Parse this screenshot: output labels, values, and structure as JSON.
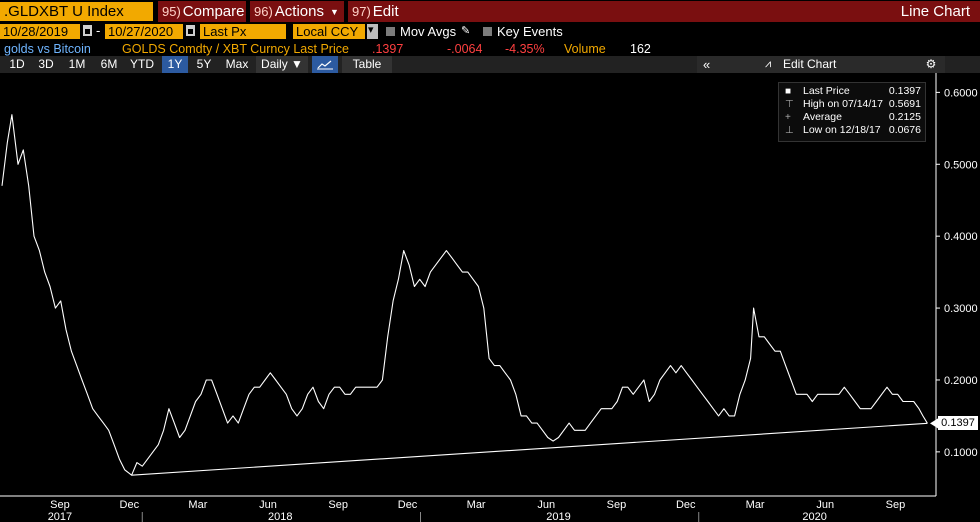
{
  "toolbar": {
    "ticker": ".GLDXBT U Index",
    "compare": {
      "num": "95)",
      "label": "Compare"
    },
    "actions": {
      "num": "96)",
      "label": "Actions"
    },
    "edit": {
      "num": "97)",
      "label": "Edit"
    },
    "chart_type": "Line Chart"
  },
  "controls": {
    "start_date": "10/28/2019",
    "end_date": "10/27/2020",
    "price_field": "Last Px",
    "currency": "Local CCY",
    "mov_avgs": "Mov Avgs",
    "key_events": "Key Events"
  },
  "info": {
    "name": "golds vs Bitcoin",
    "security": "GOLDS Comdty / XBT Curncy Last Price",
    "last": ".1397",
    "change": "-.0064",
    "pct_change": "-4.35%",
    "volume_label": "Volume",
    "volume": "162"
  },
  "periods": [
    "1D",
    "3D",
    "1M",
    "6M",
    "YTD",
    "1Y",
    "5Y",
    "Max"
  ],
  "active_period": "1Y",
  "frequency": "Daily ▼",
  "table_label": "Table",
  "edit_chart_label": "Edit Chart",
  "legend": [
    {
      "marker": "■",
      "label": "Last Price",
      "value": "0.1397"
    },
    {
      "marker": "⊤",
      "label": "High on 07/14/17",
      "value": "0.5691"
    },
    {
      "marker": "+",
      "label": "Average",
      "value": "0.2125"
    },
    {
      "marker": "⊥",
      "label": "Low on 12/18/17",
      "value": "0.0676"
    }
  ],
  "last_value_label": "0.1397",
  "colors": {
    "line": "#ffffff",
    "ticker_bg": "#f2a900",
    "menu_bg": "#7a0f10",
    "negative": "#ff4040",
    "info_label": "#f2a900",
    "name": "#6fb5ff"
  },
  "chart_data": {
    "type": "line",
    "title": "",
    "ylim": [
      0.04,
      0.62
    ],
    "yticks": [
      0.1,
      0.2,
      0.3,
      0.4,
      0.5,
      0.6
    ],
    "ytick_labels": [
      "0.1000",
      "0.2000",
      "0.3000",
      "0.4000",
      "0.5000",
      "0.6000"
    ],
    "x_month_labels": [
      "Sep",
      "Dec",
      "Mar",
      "Jun",
      "Sep",
      "Dec",
      "Mar",
      "Jun",
      "Sep",
      "Dec",
      "Mar",
      "Jun",
      "Sep"
    ],
    "x_year_labels": [
      "2017",
      "2018",
      "2019",
      "2020"
    ],
    "series": [
      {
        "values": [
          [
            "2017-07-01",
            0.47
          ],
          [
            "2017-07-08",
            0.53
          ],
          [
            "2017-07-14",
            0.569
          ],
          [
            "2017-07-22",
            0.5
          ],
          [
            "2017-07-29",
            0.52
          ],
          [
            "2017-08-05",
            0.47
          ],
          [
            "2017-08-12",
            0.4
          ],
          [
            "2017-08-19",
            0.38
          ],
          [
            "2017-08-26",
            0.35
          ],
          [
            "2017-09-02",
            0.33
          ],
          [
            "2017-09-09",
            0.3
          ],
          [
            "2017-09-16",
            0.31
          ],
          [
            "2017-09-23",
            0.27
          ],
          [
            "2017-09-30",
            0.24
          ],
          [
            "2017-10-07",
            0.22
          ],
          [
            "2017-10-14",
            0.2
          ],
          [
            "2017-10-21",
            0.18
          ],
          [
            "2017-10-28",
            0.16
          ],
          [
            "2017-11-04",
            0.15
          ],
          [
            "2017-11-11",
            0.14
          ],
          [
            "2017-11-18",
            0.13
          ],
          [
            "2017-11-25",
            0.11
          ],
          [
            "2017-12-02",
            0.09
          ],
          [
            "2017-12-09",
            0.075
          ],
          [
            "2017-12-18",
            0.0676
          ],
          [
            "2017-12-25",
            0.085
          ],
          [
            "2018-01-01",
            0.08
          ],
          [
            "2018-01-08",
            0.09
          ],
          [
            "2018-01-15",
            0.1
          ],
          [
            "2018-01-22",
            0.11
          ],
          [
            "2018-01-29",
            0.13
          ],
          [
            "2018-02-05",
            0.16
          ],
          [
            "2018-02-12",
            0.14
          ],
          [
            "2018-02-19",
            0.12
          ],
          [
            "2018-02-26",
            0.13
          ],
          [
            "2018-03-05",
            0.15
          ],
          [
            "2018-03-12",
            0.17
          ],
          [
            "2018-03-19",
            0.18
          ],
          [
            "2018-03-26",
            0.2
          ],
          [
            "2018-04-02",
            0.2
          ],
          [
            "2018-04-09",
            0.18
          ],
          [
            "2018-04-16",
            0.16
          ],
          [
            "2018-04-23",
            0.14
          ],
          [
            "2018-04-30",
            0.15
          ],
          [
            "2018-05-07",
            0.14
          ],
          [
            "2018-05-14",
            0.16
          ],
          [
            "2018-05-21",
            0.18
          ],
          [
            "2018-05-28",
            0.19
          ],
          [
            "2018-06-04",
            0.19
          ],
          [
            "2018-06-11",
            0.2
          ],
          [
            "2018-06-18",
            0.21
          ],
          [
            "2018-06-25",
            0.2
          ],
          [
            "2018-07-02",
            0.19
          ],
          [
            "2018-07-09",
            0.18
          ],
          [
            "2018-07-16",
            0.16
          ],
          [
            "2018-07-23",
            0.15
          ],
          [
            "2018-07-30",
            0.16
          ],
          [
            "2018-08-06",
            0.18
          ],
          [
            "2018-08-13",
            0.19
          ],
          [
            "2018-08-20",
            0.17
          ],
          [
            "2018-08-27",
            0.16
          ],
          [
            "2018-09-03",
            0.18
          ],
          [
            "2018-09-10",
            0.19
          ],
          [
            "2018-09-17",
            0.19
          ],
          [
            "2018-09-24",
            0.18
          ],
          [
            "2018-10-01",
            0.18
          ],
          [
            "2018-10-08",
            0.19
          ],
          [
            "2018-10-15",
            0.19
          ],
          [
            "2018-10-22",
            0.19
          ],
          [
            "2018-10-29",
            0.19
          ],
          [
            "2018-11-05",
            0.19
          ],
          [
            "2018-11-12",
            0.2
          ],
          [
            "2018-11-19",
            0.26
          ],
          [
            "2018-11-26",
            0.31
          ],
          [
            "2018-12-03",
            0.34
          ],
          [
            "2018-12-10",
            0.38
          ],
          [
            "2018-12-17",
            0.36
          ],
          [
            "2018-12-24",
            0.33
          ],
          [
            "2018-12-31",
            0.34
          ],
          [
            "2019-01-07",
            0.33
          ],
          [
            "2019-01-14",
            0.35
          ],
          [
            "2019-01-21",
            0.36
          ],
          [
            "2019-01-28",
            0.37
          ],
          [
            "2019-02-04",
            0.38
          ],
          [
            "2019-02-11",
            0.37
          ],
          [
            "2019-02-18",
            0.36
          ],
          [
            "2019-02-25",
            0.35
          ],
          [
            "2019-03-04",
            0.35
          ],
          [
            "2019-03-11",
            0.34
          ],
          [
            "2019-03-18",
            0.33
          ],
          [
            "2019-03-25",
            0.3
          ],
          [
            "2019-04-01",
            0.23
          ],
          [
            "2019-04-08",
            0.22
          ],
          [
            "2019-04-15",
            0.22
          ],
          [
            "2019-04-22",
            0.21
          ],
          [
            "2019-04-29",
            0.2
          ],
          [
            "2019-05-06",
            0.18
          ],
          [
            "2019-05-13",
            0.15
          ],
          [
            "2019-05-20",
            0.15
          ],
          [
            "2019-05-27",
            0.14
          ],
          [
            "2019-06-03",
            0.14
          ],
          [
            "2019-06-10",
            0.13
          ],
          [
            "2019-06-17",
            0.12
          ],
          [
            "2019-06-24",
            0.115
          ],
          [
            "2019-07-01",
            0.12
          ],
          [
            "2019-07-08",
            0.13
          ],
          [
            "2019-07-15",
            0.14
          ],
          [
            "2019-07-22",
            0.13
          ],
          [
            "2019-07-29",
            0.13
          ],
          [
            "2019-08-05",
            0.13
          ],
          [
            "2019-08-12",
            0.14
          ],
          [
            "2019-08-19",
            0.15
          ],
          [
            "2019-08-26",
            0.16
          ],
          [
            "2019-09-02",
            0.16
          ],
          [
            "2019-09-09",
            0.16
          ],
          [
            "2019-09-16",
            0.17
          ],
          [
            "2019-09-23",
            0.19
          ],
          [
            "2019-09-30",
            0.19
          ],
          [
            "2019-10-07",
            0.18
          ],
          [
            "2019-10-14",
            0.19
          ],
          [
            "2019-10-21",
            0.2
          ],
          [
            "2019-10-28",
            0.17
          ],
          [
            "2019-11-04",
            0.18
          ],
          [
            "2019-11-11",
            0.2
          ],
          [
            "2019-11-18",
            0.21
          ],
          [
            "2019-11-25",
            0.22
          ],
          [
            "2019-12-02",
            0.21
          ],
          [
            "2019-12-09",
            0.22
          ],
          [
            "2019-12-16",
            0.21
          ],
          [
            "2019-12-23",
            0.2
          ],
          [
            "2019-12-30",
            0.19
          ],
          [
            "2020-01-06",
            0.18
          ],
          [
            "2020-01-13",
            0.17
          ],
          [
            "2020-01-20",
            0.16
          ],
          [
            "2020-01-27",
            0.15
          ],
          [
            "2020-02-03",
            0.16
          ],
          [
            "2020-02-10",
            0.15
          ],
          [
            "2020-02-17",
            0.15
          ],
          [
            "2020-02-24",
            0.18
          ],
          [
            "2020-03-02",
            0.2
          ],
          [
            "2020-03-09",
            0.23
          ],
          [
            "2020-03-13",
            0.3
          ],
          [
            "2020-03-20",
            0.26
          ],
          [
            "2020-03-27",
            0.26
          ],
          [
            "2020-04-03",
            0.25
          ],
          [
            "2020-04-10",
            0.24
          ],
          [
            "2020-04-17",
            0.24
          ],
          [
            "2020-04-24",
            0.22
          ],
          [
            "2020-05-01",
            0.2
          ],
          [
            "2020-05-08",
            0.18
          ],
          [
            "2020-05-15",
            0.18
          ],
          [
            "2020-05-22",
            0.18
          ],
          [
            "2020-05-29",
            0.17
          ],
          [
            "2020-06-05",
            0.18
          ],
          [
            "2020-06-12",
            0.18
          ],
          [
            "2020-06-19",
            0.18
          ],
          [
            "2020-06-26",
            0.18
          ],
          [
            "2020-07-03",
            0.18
          ],
          [
            "2020-07-10",
            0.19
          ],
          [
            "2020-07-17",
            0.18
          ],
          [
            "2020-07-24",
            0.17
          ],
          [
            "2020-07-31",
            0.16
          ],
          [
            "2020-08-07",
            0.16
          ],
          [
            "2020-08-14",
            0.16
          ],
          [
            "2020-08-21",
            0.17
          ],
          [
            "2020-08-28",
            0.18
          ],
          [
            "2020-09-04",
            0.19
          ],
          [
            "2020-09-11",
            0.18
          ],
          [
            "2020-09-18",
            0.18
          ],
          [
            "2020-09-25",
            0.17
          ],
          [
            "2020-10-02",
            0.17
          ],
          [
            "2020-10-09",
            0.17
          ],
          [
            "2020-10-16",
            0.16
          ],
          [
            "2020-10-21",
            0.15
          ],
          [
            "2020-10-27",
            0.1397
          ]
        ]
      }
    ],
    "trendline": [
      [
        "2017-12-18",
        0.0676
      ],
      [
        "2020-10-27",
        0.1397
      ]
    ]
  }
}
